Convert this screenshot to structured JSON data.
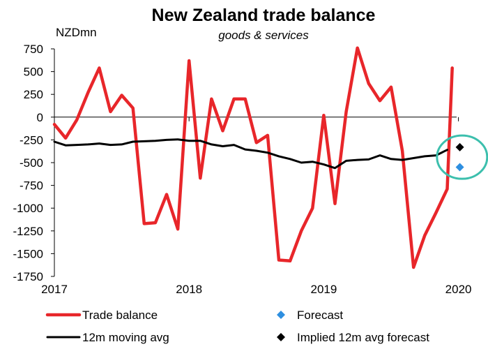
{
  "chart_data": {
    "type": "line",
    "title": "New Zealand trade balance",
    "subtitle": "goods & services",
    "ylabel": "NZDmn",
    "xlabel": "",
    "ylim": [
      -1750,
      750
    ],
    "yticks": [
      750,
      500,
      250,
      0,
      -250,
      -500,
      -750,
      -1000,
      -1250,
      -1500,
      -1750
    ],
    "ytick_labels": [
      "750",
      "500",
      "250",
      "0",
      "-250",
      "-500",
      "-750",
      "-1000",
      "-1250",
      "-1500",
      "-1750"
    ],
    "x_range": [
      0,
      36
    ],
    "xticks": [
      0,
      12,
      24,
      36
    ],
    "xtick_labels": [
      "2017",
      "2018",
      "2019",
      "2020"
    ],
    "series": [
      {
        "name": "Trade balance",
        "color": "#e8262a",
        "style": "line",
        "x": [
          0,
          1,
          2,
          3,
          4,
          5,
          6,
          7,
          8,
          9,
          10,
          11,
          12,
          13,
          14,
          15,
          16,
          17,
          18,
          19,
          20,
          21,
          22,
          23,
          24,
          25,
          26,
          27,
          28,
          29,
          30,
          31,
          32,
          33,
          34,
          35
        ],
        "values": [
          -80,
          -230,
          -30,
          270,
          540,
          60,
          240,
          100,
          -1170,
          -1160,
          -850,
          -1230,
          620,
          -670,
          200,
          -150,
          200,
          200,
          -280,
          -200,
          -1570,
          -1580,
          -1250,
          -1000,
          20,
          -950,
          60,
          760,
          370,
          180,
          330,
          -370,
          -1650,
          -1300,
          -1050,
          -790
        ]
      },
      {
        "name": "12m moving avg",
        "color": "#000000",
        "style": "line",
        "x": [
          0,
          1,
          2,
          3,
          4,
          5,
          6,
          7,
          8,
          9,
          10,
          11,
          12,
          13,
          14,
          15,
          16,
          17,
          18,
          19,
          20,
          21,
          22,
          23,
          24,
          25,
          26,
          27,
          28,
          29,
          30,
          31,
          32,
          33,
          34,
          35
        ],
        "values": [
          -270,
          -310,
          -305,
          -300,
          -290,
          -305,
          -300,
          -270,
          -265,
          -260,
          -250,
          -245,
          -260,
          -260,
          -300,
          -320,
          -305,
          -355,
          -370,
          -390,
          -430,
          -460,
          -500,
          -490,
          -520,
          -560,
          -480,
          -470,
          -465,
          -420,
          -460,
          -470,
          -450,
          -430,
          -420,
          -360
        ]
      },
      {
        "name": "Forecast",
        "color": "#2e8fe0",
        "style": "marker",
        "marker": "diamond",
        "x": [
          36
        ],
        "values": [
          -550
        ]
      },
      {
        "name": "Implied 12m avg forecast",
        "color": "#000000",
        "style": "marker",
        "marker": "diamond",
        "x": [
          36
        ],
        "values": [
          -330
        ]
      }
    ],
    "trade_balance_extra": {
      "x": 36,
      "value": 540
    },
    "annotation": {
      "type": "ellipse",
      "color": "#3cbfad",
      "center_x": 36.2,
      "center_y": -440
    },
    "legend": {
      "placement": "bottom",
      "items": [
        {
          "label": "Trade balance",
          "symbol": "line",
          "color": "#e8262a"
        },
        {
          "label": "Forecast",
          "symbol": "diamond",
          "color": "#2e8fe0"
        },
        {
          "label": "12m moving avg",
          "symbol": "line",
          "color": "#000000"
        },
        {
          "label": "Implied 12m avg forecast",
          "symbol": "diamond",
          "color": "#000000"
        }
      ]
    }
  }
}
